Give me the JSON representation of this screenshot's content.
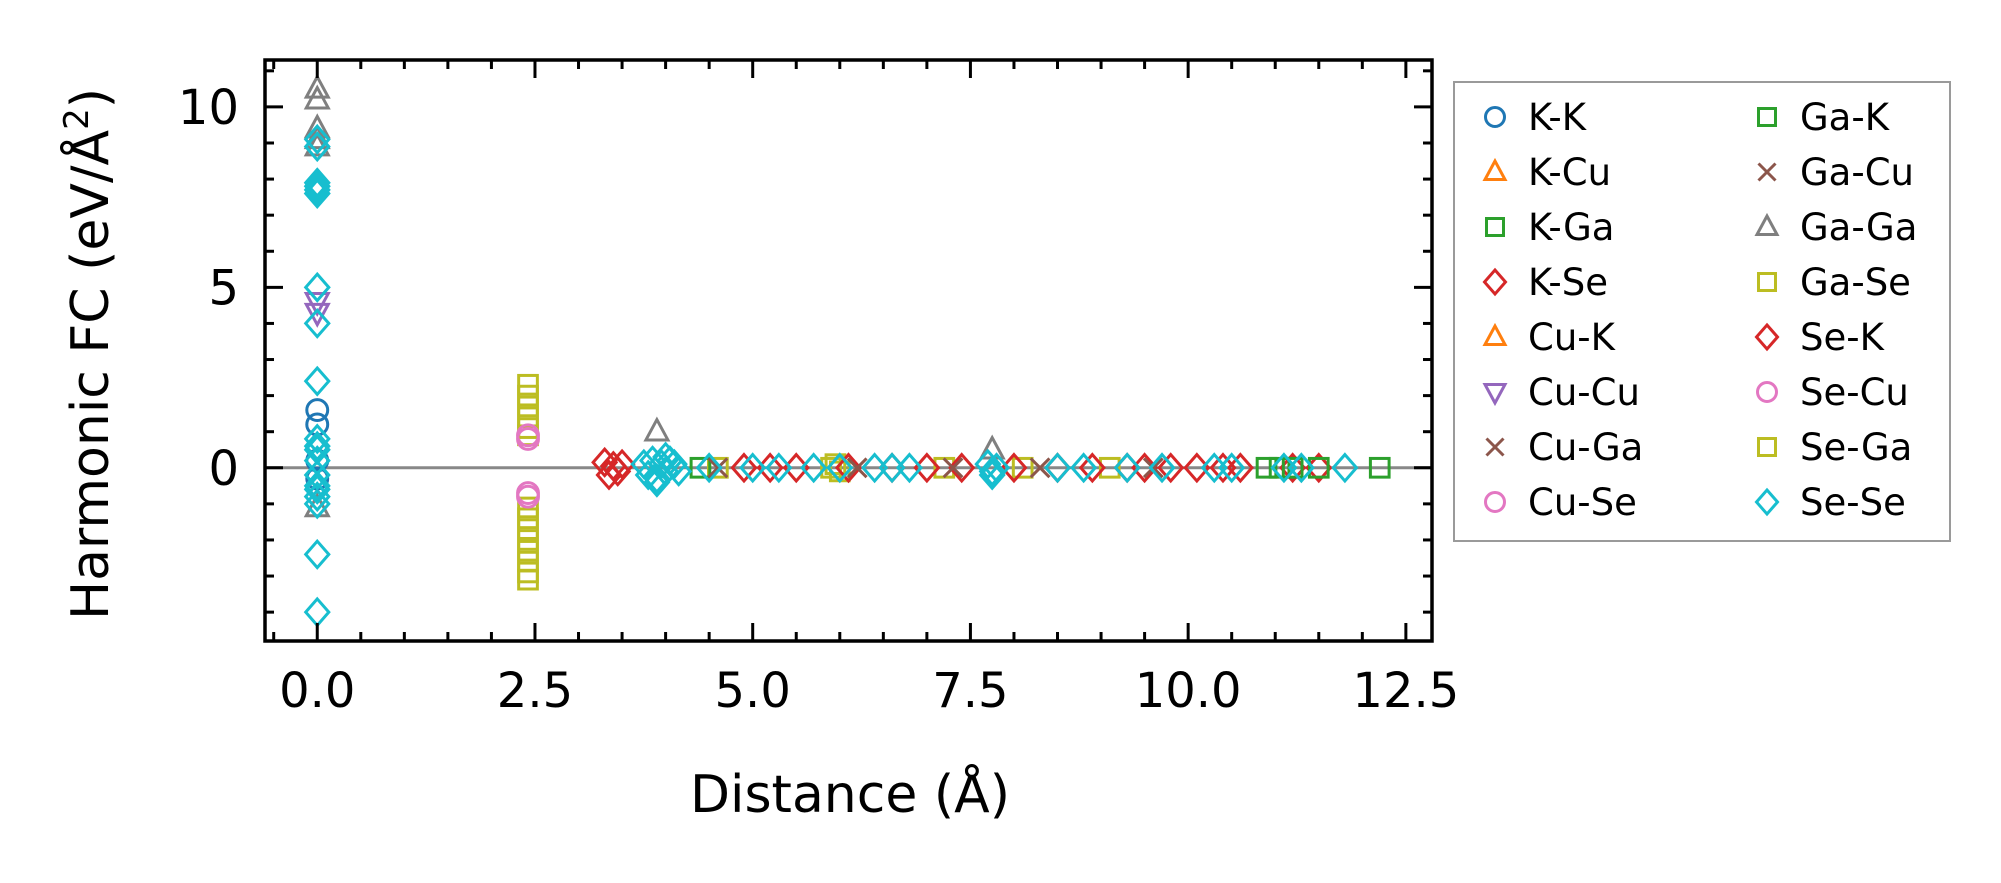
{
  "chart_data": {
    "type": "scatter",
    "xlabel": "Distance (Å)",
    "ylabel_main": "Harmonic FC (eV/Å",
    "ylabel_sup": "2",
    "ylabel_close": ")",
    "xlim": [
      -0.6,
      12.8
    ],
    "ylim": [
      -4.8,
      11.3
    ],
    "xticks": [
      0.0,
      2.5,
      5.0,
      7.5,
      10.0,
      12.5
    ],
    "xtick_labels": [
      "0.0",
      "2.5",
      "5.0",
      "7.5",
      "10.0",
      "12.5"
    ],
    "yticks": [
      0,
      5,
      10
    ],
    "ytick_labels": [
      "0",
      "5",
      "10"
    ],
    "zero_line": true,
    "legend": {
      "location": "outside-right",
      "columns": 2,
      "entries": [
        {
          "label": "K-K",
          "marker": "circle",
          "color": "#1f77b4"
        },
        {
          "label": "K-Cu",
          "marker": "triangle-up",
          "color": "#ff7f0e"
        },
        {
          "label": "K-Ga",
          "marker": "square",
          "color": "#2ca02c"
        },
        {
          "label": "K-Se",
          "marker": "diamond",
          "color": "#d62728"
        },
        {
          "label": "Cu-K",
          "marker": "triangle-up",
          "color": "#ff7f0e"
        },
        {
          "label": "Cu-Cu",
          "marker": "triangle-down",
          "color": "#9467bd"
        },
        {
          "label": "Cu-Ga",
          "marker": "x",
          "color": "#8c564b"
        },
        {
          "label": "Cu-Se",
          "marker": "circle",
          "color": "#e377c2"
        },
        {
          "label": "Ga-K",
          "marker": "square",
          "color": "#2ca02c"
        },
        {
          "label": "Ga-Cu",
          "marker": "x",
          "color": "#8c564b"
        },
        {
          "label": "Ga-Ga",
          "marker": "triangle-up",
          "color": "#7f7f7f"
        },
        {
          "label": "Ga-Se",
          "marker": "square",
          "color": "#bcbd22"
        },
        {
          "label": "Se-K",
          "marker": "diamond",
          "color": "#d62728"
        },
        {
          "label": "Se-Cu",
          "marker": "circle",
          "color": "#e377c2"
        },
        {
          "label": "Se-Ga",
          "marker": "square",
          "color": "#bcbd22"
        },
        {
          "label": "Se-Se",
          "marker": "diamond",
          "color": "#17becf"
        }
      ]
    },
    "series": [
      {
        "name": "K-K",
        "marker": "circle",
        "color": "#1f77b4",
        "x": [
          0,
          0,
          0,
          0
        ],
        "y": [
          1.6,
          1.2,
          0.2,
          -0.3
        ]
      },
      {
        "name": "Se-Ga / Ga-Se",
        "marker": "square",
        "color": "#bcbd22",
        "x": [
          2.42,
          2.42,
          2.42,
          2.42,
          2.42,
          2.42,
          2.42,
          2.42,
          2.42,
          2.42,
          2.42,
          2.42,
          2.42,
          2.42,
          4.6,
          5.9,
          5.95,
          6.0,
          7.2,
          8.1,
          9.1
        ],
        "y": [
          2.3,
          2.0,
          1.7,
          1.4,
          1.1,
          0.9,
          -1.1,
          -1.4,
          -1.7,
          -2.0,
          -2.3,
          -2.6,
          -2.9,
          -3.1,
          0,
          0,
          0.1,
          -0.1,
          0,
          0,
          0
        ]
      },
      {
        "name": "Cu-Se / Se-Cu",
        "marker": "circle",
        "color": "#e377c2",
        "x": [
          2.42,
          2.42,
          2.42,
          2.42
        ],
        "y": [
          0.9,
          0.8,
          -0.7,
          -0.8
        ]
      },
      {
        "name": "K-Se / Se-K",
        "marker": "diamond",
        "color": "#d62728",
        "x": [
          3.3,
          3.35,
          3.4,
          3.45,
          3.5,
          4.9,
          5.2,
          5.5,
          6.1,
          6.6,
          7.0,
          7.4,
          8.0,
          8.5,
          8.9,
          9.3,
          9.5,
          9.8,
          10.1,
          10.4,
          10.6,
          11.2,
          11.5
        ],
        "y": [
          0.15,
          -0.2,
          0.05,
          -0.1,
          0.1,
          0,
          0,
          0,
          0,
          0,
          0,
          0,
          0,
          0,
          0,
          0,
          0,
          0,
          0,
          0,
          0,
          0,
          0
        ]
      },
      {
        "name": "Ga-Ga",
        "marker": "triangle-up",
        "color": "#7f7f7f",
        "x": [
          0,
          0,
          0,
          0,
          0,
          0,
          3.9,
          7.75
        ],
        "y": [
          10.5,
          10.2,
          9.4,
          9.1,
          8.9,
          -1.1,
          1.0,
          0.5
        ]
      },
      {
        "name": "Cu-Cu",
        "marker": "triangle-down",
        "color": "#9467bd",
        "x": [
          0,
          0
        ],
        "y": [
          4.6,
          4.3
        ]
      },
      {
        "name": "Ga-K",
        "marker": "square",
        "color": "#2ca02c",
        "x": [
          4.4,
          10.9,
          11.05,
          11.2,
          11.5,
          12.2
        ],
        "y": [
          0,
          0,
          0,
          0,
          0,
          0
        ]
      },
      {
        "name": "Cu-Ga / Ga-Cu",
        "marker": "x",
        "color": "#8c564b",
        "x": [
          4.6,
          6.2,
          7.3,
          8.3,
          9.6
        ],
        "y": [
          0,
          0,
          0,
          0,
          0
        ]
      },
      {
        "name": "Se-Se",
        "marker": "diamond",
        "color": "#17becf",
        "x": [
          0,
          0,
          0,
          0,
          0,
          0,
          0,
          0,
          0,
          0,
          0,
          0,
          0,
          0,
          0,
          0,
          0,
          0,
          0,
          0,
          3.75,
          3.8,
          3.85,
          3.9,
          3.95,
          4.0,
          4.05,
          4.1,
          4.15,
          3.9,
          4.0,
          4.5,
          5.0,
          5.3,
          5.7,
          6.0,
          6.4,
          6.6,
          6.8,
          7.7,
          7.75,
          7.8,
          7.75,
          8.5,
          8.8,
          9.3,
          9.7,
          10.3,
          10.5,
          11.1,
          11.3,
          11.8
        ],
        "y": [
          9.1,
          8.9,
          7.9,
          7.8,
          7.7,
          7.6,
          5.0,
          4.0,
          2.4,
          0.8,
          0.5,
          0.2,
          -0.2,
          -0.5,
          -0.8,
          -1.0,
          -2.4,
          -4.0,
          0.6,
          -0.6,
          0.1,
          -0.2,
          0.2,
          -0.3,
          0.1,
          -0.1,
          0.2,
          0.1,
          -0.1,
          -0.4,
          0.3,
          0,
          0,
          0,
          0,
          0,
          0,
          0,
          0,
          0.1,
          -0.1,
          0,
          -0.2,
          0,
          0,
          0,
          0,
          0,
          0,
          0,
          0,
          0
        ]
      }
    ]
  }
}
